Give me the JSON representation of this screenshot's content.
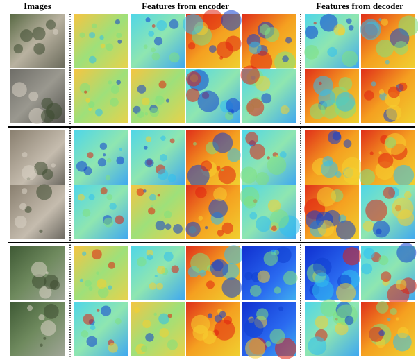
{
  "header": {
    "images": "Images",
    "encoder": "Features from encoder",
    "decoder": "Features from decoder"
  }
}
